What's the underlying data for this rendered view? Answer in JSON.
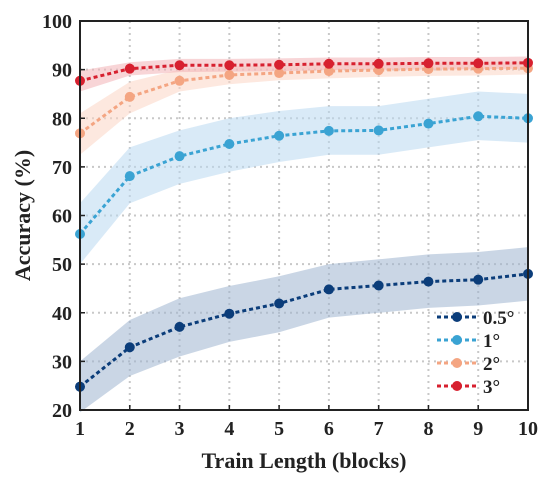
{
  "chart_data": {
    "type": "line",
    "xlabel": "Train Length (blocks)",
    "ylabel": "Accuracy (%)",
    "xlim": [
      1,
      10
    ],
    "ylim": [
      20,
      100
    ],
    "x_ticks": [
      "1",
      "2",
      "3",
      "4",
      "5",
      "6",
      "7",
      "8",
      "9",
      "10"
    ],
    "y_ticks": [
      "20",
      "30",
      "40",
      "50",
      "60",
      "70",
      "80",
      "90",
      "100"
    ],
    "grid": true,
    "grid_style": "dotted",
    "legend_position": "bottom-right",
    "x": [
      1,
      2,
      3,
      4,
      5,
      6,
      7,
      8,
      9,
      10
    ],
    "series": [
      {
        "name": "0.5°",
        "color": "#0b3d7a",
        "band_color": "#9fb4cf",
        "values": [
          24.8,
          32.9,
          37.1,
          39.8,
          41.9,
          44.8,
          45.6,
          46.4,
          46.8,
          48.0
        ],
        "lower": [
          19.5,
          27.0,
          31.0,
          34.0,
          36.0,
          39.0,
          40.0,
          41.0,
          41.5,
          42.5
        ],
        "upper": [
          30.0,
          38.5,
          43.0,
          45.5,
          47.5,
          50.0,
          51.0,
          52.0,
          52.5,
          53.5
        ]
      },
      {
        "name": "1°",
        "color": "#3aa3d3",
        "band_color": "#b9d9f0",
        "values": [
          56.2,
          68.1,
          72.2,
          74.7,
          76.4,
          77.4,
          77.5,
          78.9,
          80.4,
          80.0
        ],
        "lower": [
          50.0,
          62.5,
          66.5,
          69.0,
          71.0,
          72.5,
          72.5,
          74.0,
          75.5,
          75.0
        ],
        "upper": [
          62.5,
          74.0,
          77.5,
          80.0,
          81.5,
          82.5,
          82.5,
          84.0,
          85.5,
          85.0
        ]
      },
      {
        "name": "2°",
        "color": "#f4a582",
        "band_color": "#fbd6c4",
        "values": [
          76.9,
          84.4,
          87.7,
          88.9,
          89.3,
          89.7,
          89.9,
          90.1,
          90.2,
          90.3
        ],
        "lower": [
          72.5,
          81.0,
          85.5,
          87.0,
          87.8,
          88.2,
          88.5,
          88.7,
          88.8,
          89.0
        ],
        "upper": [
          81.0,
          87.5,
          90.0,
          90.7,
          90.9,
          91.1,
          91.3,
          91.4,
          91.5,
          91.6
        ]
      },
      {
        "name": "3°",
        "color": "#d7202f",
        "band_color": "#f2b3b6",
        "values": [
          87.7,
          90.2,
          90.9,
          90.9,
          91.0,
          91.2,
          91.2,
          91.3,
          91.3,
          91.4
        ],
        "lower": [
          85.5,
          88.8,
          89.5,
          89.6,
          89.7,
          89.9,
          90.0,
          90.0,
          90.1,
          90.2
        ],
        "upper": [
          89.8,
          91.5,
          92.2,
          92.2,
          92.3,
          92.5,
          92.5,
          92.6,
          92.6,
          92.7
        ]
      }
    ]
  }
}
